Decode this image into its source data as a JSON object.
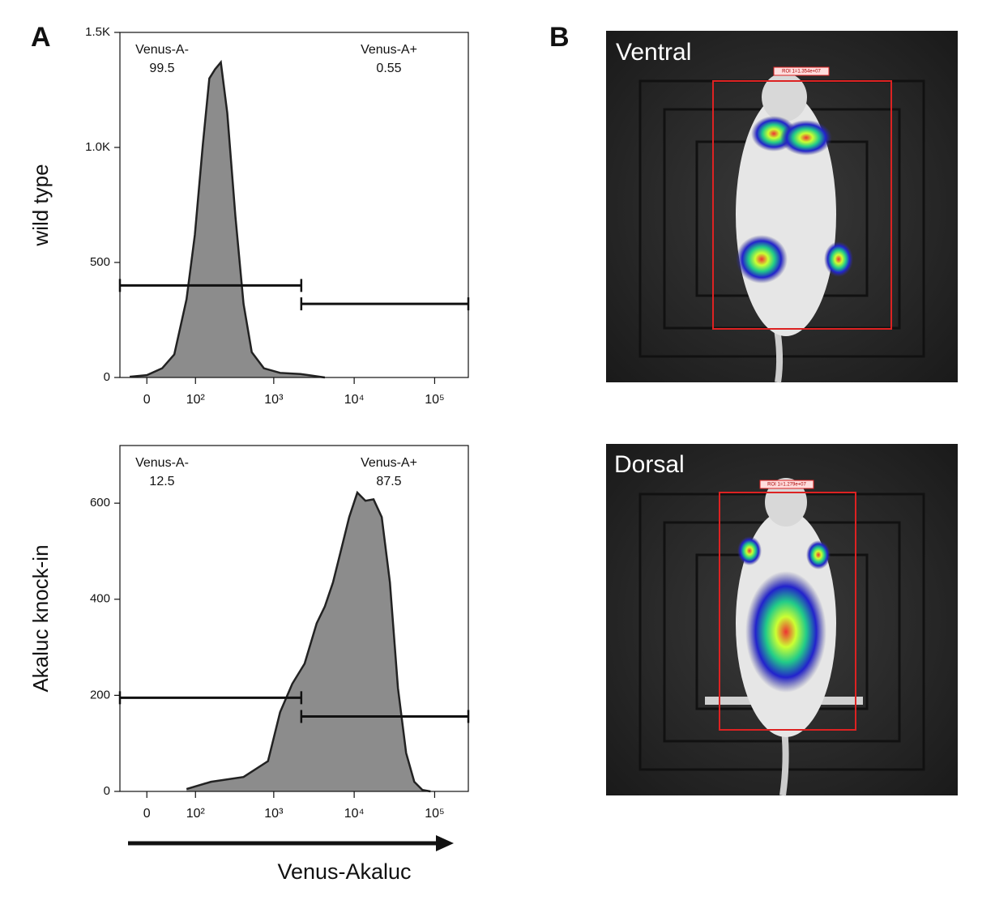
{
  "panels": {
    "a": "A",
    "b": "B"
  },
  "chart_data": [
    {
      "type": "area",
      "ylabel": "wild type",
      "x": [
        -27,
        0,
        24,
        46,
        74,
        98,
        126,
        154,
        183,
        217,
        262,
        332,
        420,
        532,
        754,
        1200,
        2150,
        4320
      ],
      "values": [
        3,
        10,
        40,
        100,
        340,
        620,
        1010,
        1300,
        1340,
        1370,
        1150,
        700,
        320,
        110,
        40,
        20,
        15,
        0
      ],
      "color": "#8c8c8c",
      "xlim": [
        -45,
        262144
      ],
      "xticks": [
        0,
        {
          "value": 100,
          "label": "10²"
        },
        {
          "value": 1000,
          "label": "10³"
        },
        {
          "value": 10000,
          "label": "10⁴"
        },
        {
          "value": 100000,
          "label": "10⁵"
        }
      ],
      "ylim": [
        0,
        1500
      ],
      "yticks": [
        0,
        500,
        {
          "value": 1000,
          "label": "1.0K"
        },
        {
          "value": 1500,
          "label": "1.5K"
        }
      ],
      "gates": [
        {
          "name": "Venus-A-",
          "value": 99.5,
          "range": [
            -45,
            2200
          ],
          "y": 400
        },
        {
          "name": "Venus-A+",
          "value": 0.55,
          "range": [
            2200,
            262144
          ],
          "y": 320
        }
      ]
    },
    {
      "type": "area",
      "ylabel": "Akaluc knock-in",
      "xlabel": "Venus-Akaluc",
      "x": [
        74,
        162,
        420,
        848,
        1200,
        1700,
        2420,
        3420,
        4320,
        5450,
        6880,
        8670,
        10940,
        13800,
        17400,
        22000,
        27800,
        35000,
        44200,
        55800,
        70500,
        88900
      ],
      "values": [
        5,
        20,
        30,
        63,
        165,
        224,
        266,
        350,
        385,
        435,
        503,
        571,
        622,
        605,
        608,
        571,
        435,
        215,
        80,
        20,
        3,
        0
      ],
      "color": "#8c8c8c",
      "xlim": [
        -45,
        262144
      ],
      "xticks": [
        0,
        {
          "value": 100,
          "label": "10²"
        },
        {
          "value": 1000,
          "label": "10³"
        },
        {
          "value": 10000,
          "label": "10⁴"
        },
        {
          "value": 100000,
          "label": "10⁵"
        }
      ],
      "ylim": [
        0,
        720
      ],
      "yticks": [
        0,
        200,
        400,
        600
      ],
      "gates": [
        {
          "name": "Venus-A-",
          "value": 12.5,
          "range": [
            -45,
            2200
          ],
          "y": 195
        },
        {
          "name": "Venus-A+",
          "value": 87.5,
          "range": [
            2200,
            262144
          ],
          "y": 156
        }
      ]
    }
  ],
  "images": [
    {
      "label": "Ventral",
      "roi": "ROI 1=1.354e+07"
    },
    {
      "label": "Dorsal",
      "roi": "ROI 1=1.279e+07"
    }
  ]
}
